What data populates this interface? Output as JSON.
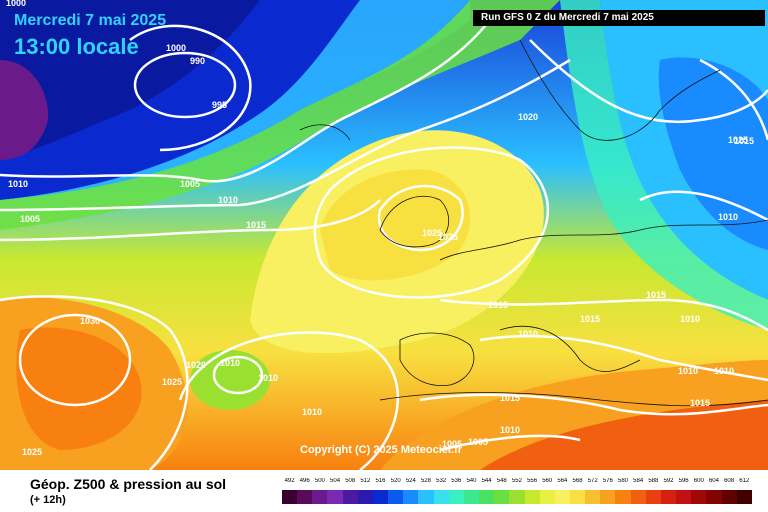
{
  "header": {
    "date": "Mercredi 7 mai 2025",
    "time": "13:00 locale",
    "run": "Run GFS 0 Z du Mercredi 7 mai 2025"
  },
  "copyright": "Copyright (C) 2025 Meteociel.fr",
  "isobar_labels": [
    "1000",
    "990",
    "995",
    "1000",
    "1010",
    "1005",
    "1005",
    "1010",
    "1015",
    "1020",
    "1025",
    "1025",
    "1015",
    "1010",
    "1015",
    "1010",
    "1015",
    "1010",
    "1015",
    "1030",
    "1020",
    "1025",
    "1010",
    "1010",
    "1010",
    "1015",
    "1010",
    "1005",
    "1025",
    "1025",
    "1015",
    "1010",
    "1010",
    "1005"
  ],
  "legend": {
    "title": "Géop. Z500 & pression au sol",
    "subtitle": "(+ 12h)",
    "ticks": [
      "492",
      "496",
      "500",
      "504",
      "508",
      "512",
      "516",
      "520",
      "524",
      "528",
      "532",
      "536",
      "540",
      "544",
      "548",
      "552",
      "556",
      "560",
      "564",
      "568",
      "572",
      "576",
      "580",
      "584",
      "588",
      "592",
      "596",
      "600",
      "604",
      "608",
      "612"
    ],
    "colors": [
      "#3a0030",
      "#5a0a5a",
      "#6a1a8a",
      "#7a2ab0",
      "#4a1aa0",
      "#2a1ab0",
      "#0a2ad0",
      "#0a5af0",
      "#1a8aff",
      "#2ac0ff",
      "#3ae0f0",
      "#3af0c0",
      "#3ae890",
      "#4ae060",
      "#6ae040",
      "#9ae030",
      "#c8e830",
      "#e8f040",
      "#f8f060",
      "#f8e040",
      "#f8c030",
      "#f8a020",
      "#f88010",
      "#f06010",
      "#e84010",
      "#d82010",
      "#c01010",
      "#a00808",
      "#800404",
      "#600000",
      "#400000"
    ]
  },
  "colors": {
    "date_text": "#2fd3ff",
    "isobar": "#ffffff",
    "run_box_bg": "#000000"
  }
}
